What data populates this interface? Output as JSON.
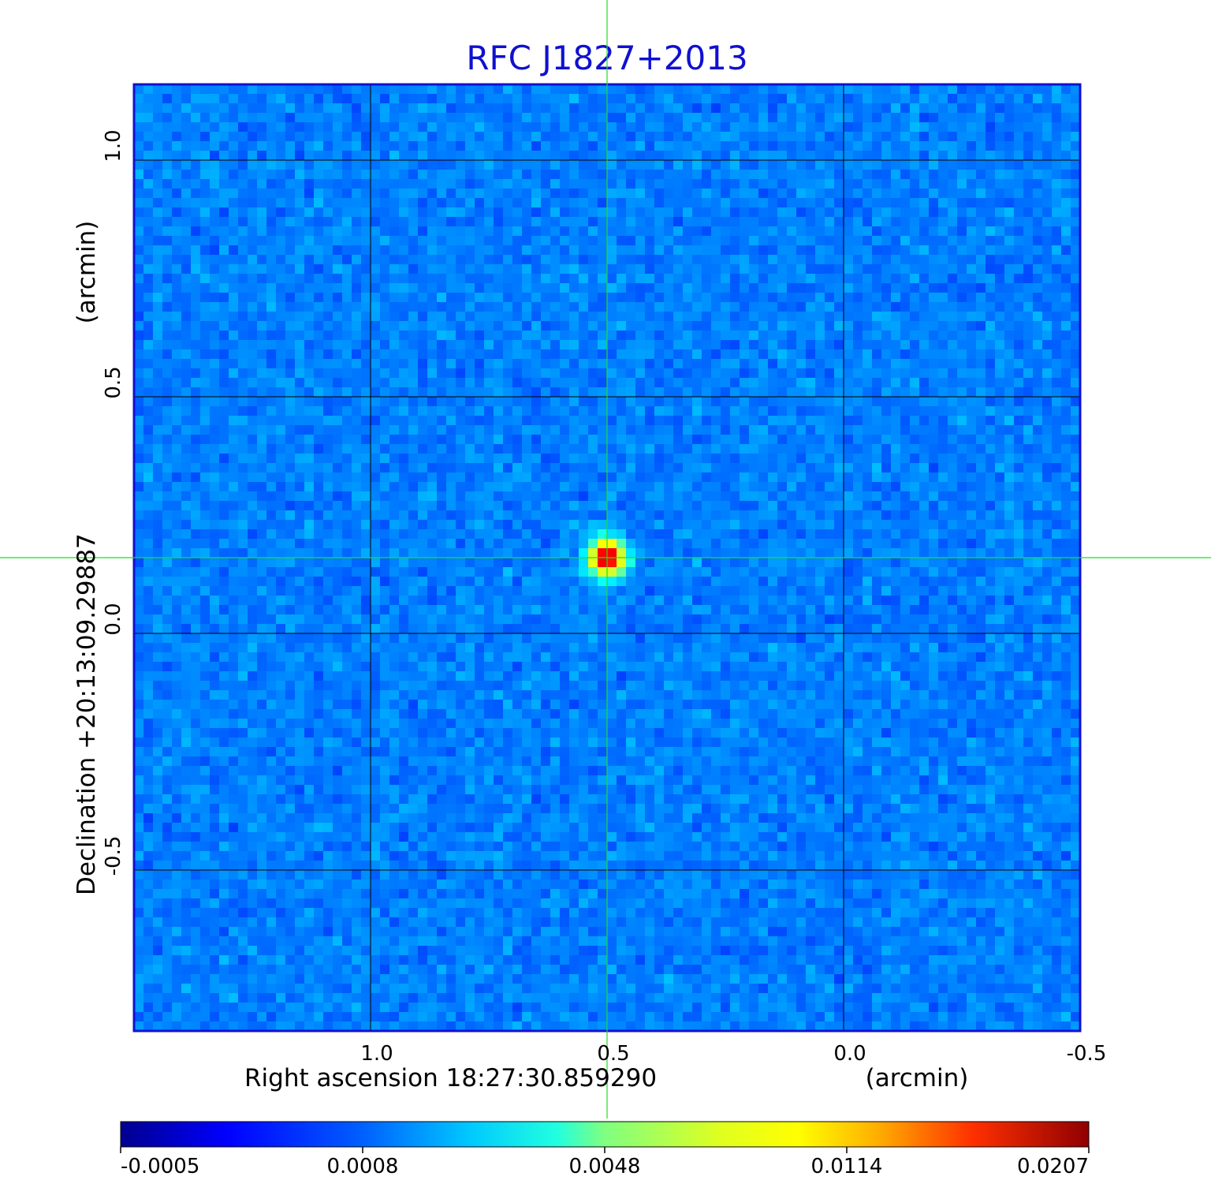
{
  "chart_data": {
    "type": "heatmap",
    "title": "RFC J1827+2013",
    "xlabel": "Right ascension  18:27:30.859290",
    "x_unit": "(arcmin)",
    "ylabel": "Declination  +20:13:09.29887",
    "y_unit": "(arcmin)",
    "x_ticks": [
      "1.0",
      "0.5",
      "0.0",
      "-0.5"
    ],
    "x_tick_values": [
      1.0,
      0.5,
      0.0,
      -0.5
    ],
    "y_ticks": [
      "1.0",
      "0.5",
      "0.0",
      "-0.5"
    ],
    "y_tick_values": [
      1.0,
      0.5,
      0.0,
      -0.5
    ],
    "xlim": [
      1.5,
      -0.5
    ],
    "ylim": [
      -0.84,
      1.16
    ],
    "x_reversed": true,
    "grid": true,
    "crosshair": {
      "x": 0.5,
      "y": 0.16
    },
    "source": {
      "x": 0.5,
      "y": 0.16,
      "peak": 0.0207
    },
    "colorbar": {
      "ticks": [
        "-0.0005",
        "0.0008",
        "0.0048",
        "0.0114",
        "0.0207"
      ],
      "values": [
        -0.0005,
        0.0008,
        0.0048,
        0.0114,
        0.0207
      ],
      "colormap": "jet"
    },
    "colors": {
      "title": "#1010d0",
      "frame": "#1010d0",
      "crosshair": "#22dd22",
      "grid": "#000000",
      "background": "#1e5cf0"
    }
  }
}
